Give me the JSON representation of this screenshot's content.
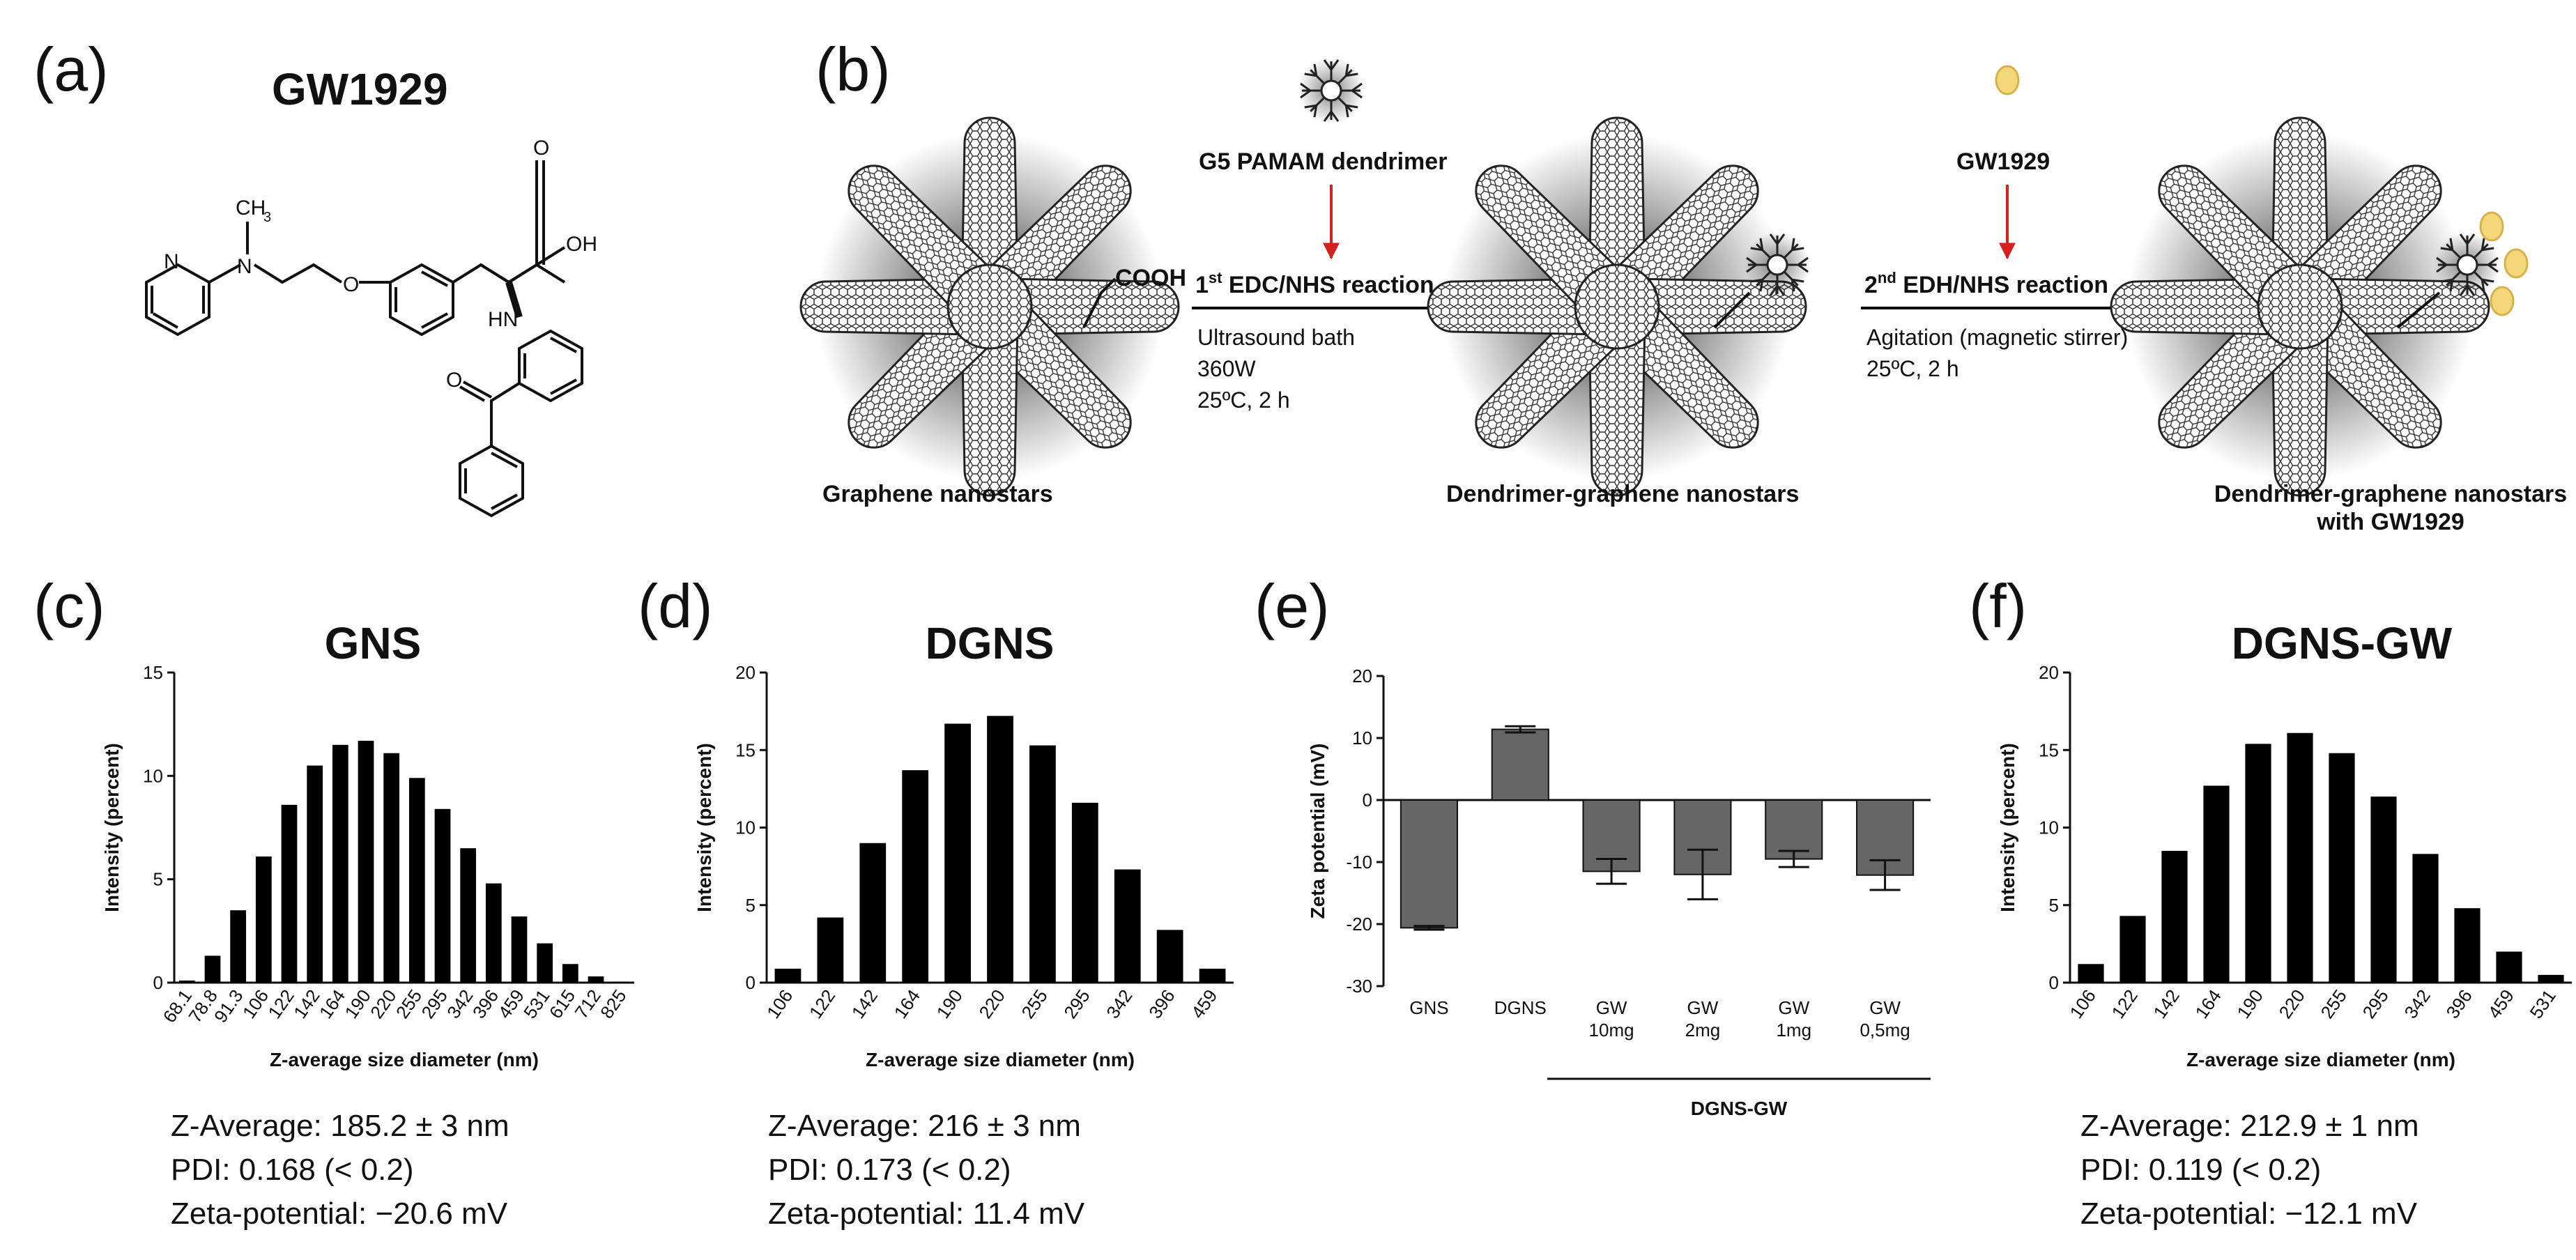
{
  "colors": {
    "bar": "#000000",
    "zeta_bar": "#666666",
    "arrow_red": "#d42020",
    "drug": "#f3d77a"
  },
  "panel_a": {
    "label": "(a)",
    "title": "GW1929",
    "atoms": {
      "methyl": "CH",
      "methyl_sub": "3",
      "amine_n": "N",
      "pyridine_n": "N",
      "ether_o": "O",
      "carbonyl_o": "O",
      "acid_oh": "OH",
      "nh": "HN",
      "ketone_o": "O"
    }
  },
  "panel_b": {
    "label": "(b)",
    "cooh": "COOH",
    "reagent1": "G5 PAMAM dendrimer",
    "reaction1": {
      "prefix": "1",
      "sup": "st",
      "text": " EDC/NHS reaction"
    },
    "conditions1": [
      "Ultrasound bath",
      "360W",
      "25ºC, 2 h"
    ],
    "reagent2": "GW1929",
    "reaction2": {
      "prefix": "2",
      "sup": "nd",
      "text": " EDH/NHS reaction"
    },
    "conditions2": [
      "Agitation (magnetic stirrer)",
      "25ºC, 2 h"
    ],
    "product1": "Graphene nanostars",
    "product2": "Dendrimer-graphene nanostars",
    "product3_line1": "Dendrimer-graphene nanostars",
    "product3_line2": "with GW1929"
  },
  "panel_c": {
    "label": "(c)",
    "stats": [
      "Z-Average: 185.2 ± 3 nm",
      "PDI: 0.168 (< 0.2)",
      "Zeta-potential: −20.6 mV"
    ]
  },
  "panel_d": {
    "label": "(d)",
    "stats": [
      "Z-Average: 216 ± 3 nm",
      "PDI: 0.173 (< 0.2)",
      "Zeta-potential: 11.4 mV"
    ]
  },
  "panel_e": {
    "label": "(e)",
    "group_label": "DGNS-GW"
  },
  "panel_f": {
    "label": "(f)",
    "stats": [
      "Z-Average: 212.9 ± 1 nm",
      "PDI: 0.119 (< 0.2)",
      "Zeta-potential: −12.1 mV"
    ]
  },
  "chart_data": [
    {
      "id": "c",
      "type": "bar",
      "title": "GNS",
      "xlabel": "Z-average size diameter (nm)",
      "ylabel": "Intensity (percent)",
      "ylim": [
        0,
        15
      ],
      "yticks": [
        0,
        5,
        10,
        15
      ],
      "categories": [
        "68.1",
        "78.8",
        "91.3",
        "106",
        "122",
        "142",
        "164",
        "190",
        "220",
        "255",
        "295",
        "342",
        "396",
        "459",
        "531",
        "615",
        "712",
        "825"
      ],
      "values": [
        0.1,
        1.3,
        3.5,
        6.1,
        8.6,
        10.5,
        11.5,
        11.7,
        11.1,
        9.9,
        8.4,
        6.5,
        4.8,
        3.2,
        1.9,
        0.9,
        0.3,
        0.05
      ]
    },
    {
      "id": "d",
      "type": "bar",
      "title": "DGNS",
      "xlabel": "Z-average size diameter (nm)",
      "ylabel": "Intensity (percent)",
      "ylim": [
        0,
        20
      ],
      "yticks": [
        0,
        5,
        10,
        15,
        20
      ],
      "categories": [
        "106",
        "122",
        "142",
        "164",
        "190",
        "220",
        "255",
        "295",
        "342",
        "396",
        "459"
      ],
      "values": [
        0.9,
        4.2,
        9.0,
        13.7,
        16.7,
        17.2,
        15.3,
        11.6,
        7.3,
        3.4,
        0.9
      ]
    },
    {
      "id": "e",
      "type": "bar",
      "title": "",
      "xlabel": "",
      "ylabel": "Zeta potential (mV)",
      "ylim": [
        -30,
        20
      ],
      "yticks": [
        -30,
        -20,
        -10,
        0,
        10,
        20
      ],
      "categories": [
        [
          "GNS"
        ],
        [
          "DGNS"
        ],
        [
          "GW",
          "10mg"
        ],
        [
          "GW",
          "2mg"
        ],
        [
          "GW",
          "1mg"
        ],
        [
          "GW",
          "0,5mg"
        ]
      ],
      "values": [
        -20.6,
        11.4,
        -11.5,
        -12.0,
        -9.5,
        -12.1
      ],
      "errors": [
        0.3,
        0.5,
        2.0,
        4.0,
        1.3,
        2.4
      ]
    },
    {
      "id": "f",
      "type": "bar",
      "title": "DGNS-GW",
      "xlabel": "Z-average size diameter (nm)",
      "ylabel": "Intensity (percent)",
      "ylim": [
        0,
        20
      ],
      "yticks": [
        0,
        5,
        10,
        15,
        20
      ],
      "categories": [
        "106",
        "122",
        "142",
        "164",
        "190",
        "220",
        "255",
        "295",
        "342",
        "396",
        "459",
        "531"
      ],
      "values": [
        1.2,
        4.3,
        8.5,
        12.7,
        15.4,
        16.1,
        14.8,
        12.0,
        8.3,
        4.8,
        2.0,
        0.5
      ]
    }
  ]
}
